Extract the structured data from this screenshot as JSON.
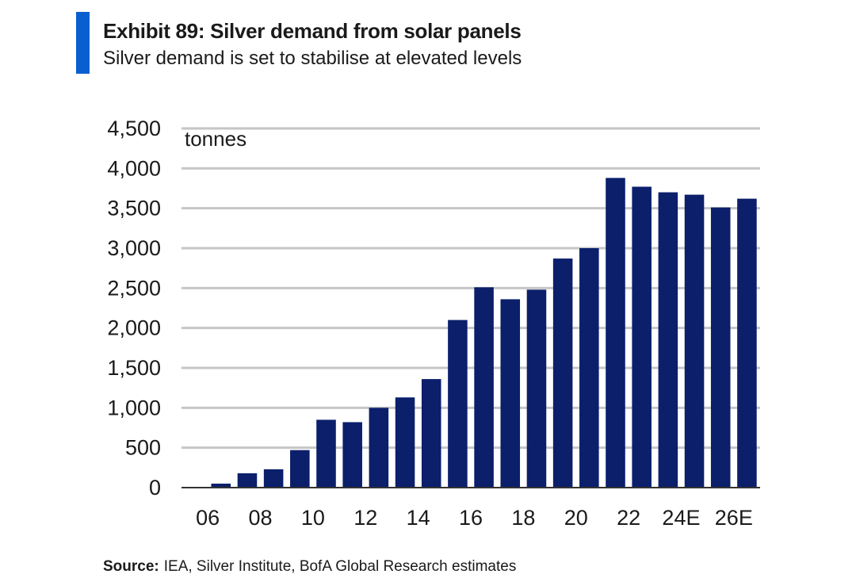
{
  "header": {
    "title": "Exhibit 89: Silver demand from solar panels",
    "subtitle": "Silver demand is set to stabilise at elevated levels"
  },
  "footer": {
    "source_label": "Source:",
    "source_text": "IEA, Silver Institute, BofA Global Research estimates"
  },
  "colors": {
    "accent": "#0a5fd0",
    "bar": "#0b1f6b",
    "grid": "#c6c6c6"
  },
  "chart_data": {
    "type": "bar",
    "ylabel": "tonnes",
    "ylim": [
      0,
      4500
    ],
    "yticks": [
      0,
      500,
      1000,
      1500,
      2000,
      2500,
      3000,
      3500,
      4000,
      4500
    ],
    "ytick_labels": [
      "0",
      "500",
      "1,000",
      "1,500",
      "2,000",
      "2,500",
      "3,000",
      "3,500",
      "4,000",
      "4,500"
    ],
    "grid": true,
    "categories": [
      "06",
      "07",
      "08",
      "09",
      "10",
      "11",
      "12",
      "13",
      "14",
      "15",
      "16",
      "17",
      "18",
      "19",
      "20",
      "21",
      "22",
      "23E",
      "24E",
      "25E",
      "26E",
      "27E"
    ],
    "xtick_labels": [
      "06",
      "",
      "08",
      "",
      "10",
      "",
      "12",
      "",
      "14",
      "",
      "16",
      "",
      "18",
      "",
      "20",
      "",
      "22",
      "",
      "24E",
      "",
      "26E",
      ""
    ],
    "values": [
      10,
      50,
      180,
      230,
      470,
      850,
      820,
      1000,
      1130,
      1360,
      2100,
      2510,
      2360,
      2480,
      2870,
      3000,
      3880,
      3770,
      3700,
      3670,
      3510,
      3620
    ]
  }
}
